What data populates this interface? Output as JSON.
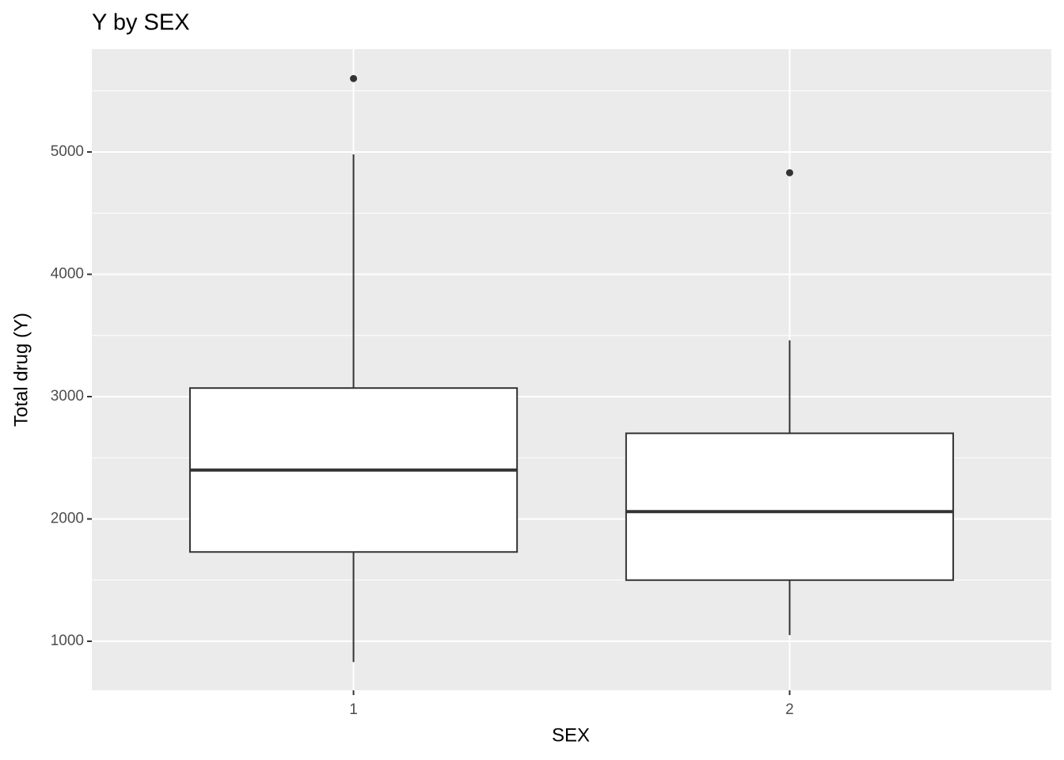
{
  "chart_data": {
    "type": "boxplot",
    "title": "Y by SEX",
    "x_label": "SEX",
    "y_label": "Total drug (Y)",
    "categories": [
      "1",
      "2"
    ],
    "boxes": [
      {
        "whisker_low": 830,
        "q1": 1730,
        "median": 2400,
        "q3": 3070,
        "whisker_high": 4980,
        "outliers": [
          5600
        ]
      },
      {
        "whisker_low": 1050,
        "q1": 1500,
        "median": 2060,
        "q3": 2700,
        "whisker_high": 3460,
        "outliers": [
          4830
        ]
      }
    ],
    "ylim": [
      599,
      5841
    ],
    "yticks": [
      1000,
      2000,
      3000,
      4000,
      5000
    ],
    "grid": true,
    "panel_color": "#ebebeb",
    "box_fill": "#ffffff",
    "line_color": "#333333"
  }
}
